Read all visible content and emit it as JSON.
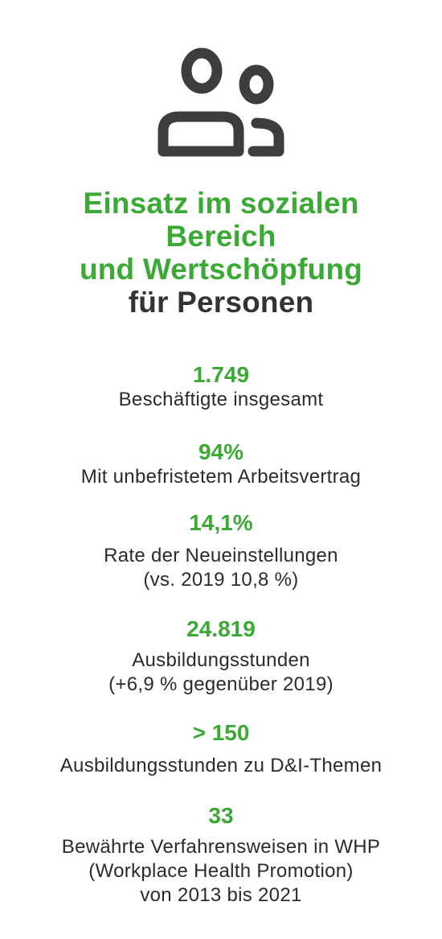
{
  "header": {
    "icon": "users-icon",
    "title_line1": "Einsatz im sozialen",
    "title_line2": "Bereich",
    "title_line3": "und Wertschöpfung",
    "title_line4": "für Personen"
  },
  "colors": {
    "accent": "#3aaa35",
    "text": "#333333",
    "icon": "#3d3d3d"
  },
  "stats": [
    {
      "value": "1.749",
      "desc1": "Beschäftigte insgesamt",
      "desc2": "",
      "desc3": ""
    },
    {
      "value": "94%",
      "desc1": "Mit unbefristetem Arbeitsvertrag",
      "desc2": "",
      "desc3": ""
    },
    {
      "value": "14,1%",
      "desc1": "Rate der Neueinstellungen",
      "desc2": "(vs. 2019  10,8 %)",
      "desc3": ""
    },
    {
      "value": "24.819",
      "desc1": "Ausbildungsstunden",
      "desc2": "(+6,9 % gegenüber 2019)",
      "desc3": ""
    },
    {
      "value": "> 150",
      "desc1": "Ausbildungsstunden zu D&I-Themen",
      "desc2": "",
      "desc3": ""
    },
    {
      "value": "33",
      "desc1": "Bewährte Verfahrensweisen in WHP",
      "desc2": "(Workplace Health Promotion)",
      "desc3": "von 2013 bis 2021"
    }
  ]
}
